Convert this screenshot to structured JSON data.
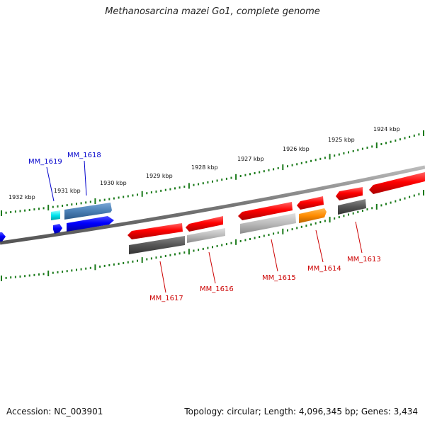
{
  "title": "Methanosarcina mazei Go1, complete genome",
  "footer": {
    "accession": "Accession: NC_003901",
    "stats": "Topology: circular; Length: 4,096,345 bp; Genes: 3,434"
  },
  "scale_labels": [
    "1932 kbp",
    "1931 kbp",
    "1930 kbp",
    "1929 kbp",
    "1928 kbp",
    "1927 kbp",
    "1926 kbp",
    "1925 kbp",
    "1924 kbp"
  ],
  "gene_labels": [
    {
      "text": "MM_1619",
      "color": "#0000cc"
    },
    {
      "text": "MM_1618",
      "color": "#0000cc"
    },
    {
      "text": "MM_1617",
      "color": "#cc0000"
    },
    {
      "text": "MM_1616",
      "color": "#cc0000"
    },
    {
      "text": "MM_1615",
      "color": "#cc0000"
    },
    {
      "text": "MM_1614",
      "color": "#cc0000"
    },
    {
      "text": "MM_1613",
      "color": "#cc0000"
    }
  ],
  "colors": {
    "backbone": "#777777",
    "ticks": "#1a7a1a",
    "forward_strand": "#ff0000",
    "reverse_strand_blue": "#0000ff",
    "steel_blue": "#4a7fb5",
    "cyan": "#00e5ee",
    "orange": "#ff8c00",
    "dark_gray": "#555555",
    "light_gray": "#bbbbbb"
  }
}
